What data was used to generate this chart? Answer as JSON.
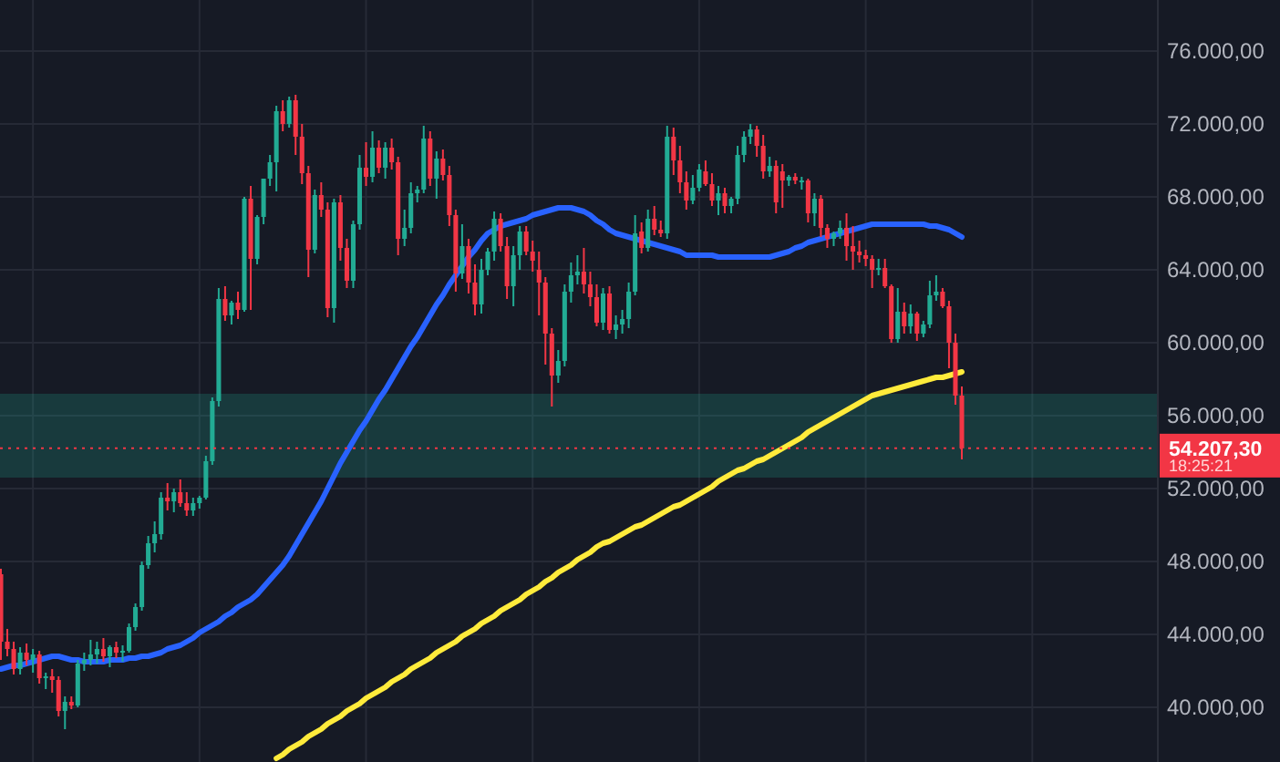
{
  "chart_data": {
    "type": "candlestick",
    "categories": [
      null,
      null,
      null,
      null,
      null,
      null,
      null,
      null,
      null,
      null,
      null,
      null,
      null,
      null,
      null,
      null,
      null,
      null,
      null,
      null,
      null,
      null,
      null,
      null,
      null,
      null,
      null,
      null,
      null,
      null,
      null,
      null,
      null,
      null,
      null,
      null,
      null,
      null,
      null,
      null,
      null,
      null,
      null,
      null,
      null,
      null,
      null,
      null,
      null,
      null,
      null,
      null,
      null,
      null,
      null,
      null,
      null,
      null,
      null,
      null,
      null,
      null,
      null,
      null,
      null,
      null,
      null,
      null,
      null,
      null,
      null,
      null,
      null,
      null,
      null,
      null,
      null,
      null,
      null,
      null,
      null,
      null,
      null,
      null,
      null,
      null,
      null,
      null,
      null,
      null,
      null,
      null,
      null,
      null,
      null,
      null,
      null,
      null,
      null,
      null,
      null,
      null,
      null,
      null,
      null,
      null,
      null,
      null,
      null,
      null,
      null,
      null,
      null,
      null,
      null,
      null,
      null,
      null,
      null,
      null,
      null,
      null,
      null,
      null,
      null,
      null,
      null,
      null,
      null,
      null,
      null,
      null,
      null,
      null,
      null,
      null,
      null,
      null,
      null,
      null,
      null,
      null,
      null,
      null,
      null,
      null,
      null,
      null,
      null,
      null,
      null
    ],
    "ohlc": [
      [
        47300,
        47600,
        42600,
        43600
      ],
      [
        43600,
        44300,
        42800,
        43200
      ],
      [
        43200,
        43600,
        41800,
        42100
      ],
      [
        42100,
        43300,
        41800,
        43000
      ],
      [
        43000,
        43500,
        42300,
        42600
      ],
      [
        42600,
        43200,
        41900,
        42900
      ],
      [
        42900,
        43100,
        41300,
        41600
      ],
      [
        41600,
        41900,
        41000,
        41700
      ],
      [
        41700,
        42100,
        40800,
        41500
      ],
      [
        41500,
        41700,
        39500,
        39800
      ],
      [
        39800,
        40600,
        38800,
        40300
      ],
      [
        40300,
        40600,
        39900,
        40100
      ],
      [
        40100,
        42600,
        40000,
        42400
      ],
      [
        42400,
        43000,
        42000,
        42600
      ],
      [
        42600,
        43700,
        42300,
        42900
      ],
      [
        42900,
        43600,
        42400,
        43200
      ],
      [
        43200,
        43800,
        42500,
        42800
      ],
      [
        42800,
        43400,
        42200,
        43300
      ],
      [
        43300,
        43600,
        42700,
        43000
      ],
      [
        43000,
        43400,
        42500,
        43100
      ],
      [
        43100,
        44600,
        43000,
        44400
      ],
      [
        44400,
        45700,
        44200,
        45500
      ],
      [
        45500,
        48000,
        45300,
        47800
      ],
      [
        47800,
        49400,
        47600,
        49000
      ],
      [
        49000,
        50200,
        48500,
        49500
      ],
      [
        49500,
        51800,
        49200,
        51500
      ],
      [
        51500,
        52300,
        50800,
        51300
      ],
      [
        51300,
        52000,
        50700,
        51800
      ],
      [
        51800,
        52500,
        51000,
        51200
      ],
      [
        51200,
        51800,
        50500,
        50800
      ],
      [
        50800,
        51500,
        50500,
        51200
      ],
      [
        51200,
        51600,
        50900,
        51500
      ],
      [
        51500,
        53800,
        51400,
        53500
      ],
      [
        53500,
        57000,
        53300,
        56800
      ],
      [
        56800,
        63000,
        56500,
        62400
      ],
      [
        62400,
        63100,
        61200,
        61500
      ],
      [
        61500,
        62300,
        61000,
        62200
      ],
      [
        62200,
        62800,
        61300,
        61800
      ],
      [
        61800,
        68000,
        61700,
        67900
      ],
      [
        67900,
        68600,
        61800,
        64600
      ],
      [
        64600,
        67000,
        64300,
        66900
      ],
      [
        66900,
        69000,
        66500,
        69000
      ],
      [
        69000,
        70300,
        68600,
        69900
      ],
      [
        69900,
        73000,
        68300,
        72700
      ],
      [
        72700,
        73300,
        71600,
        72000
      ],
      [
        72000,
        73500,
        71800,
        73300
      ],
      [
        73300,
        73600,
        70300,
        71300
      ],
      [
        71300,
        72000,
        68700,
        69300
      ],
      [
        69300,
        69700,
        63600,
        65100
      ],
      [
        65100,
        68400,
        64900,
        68100
      ],
      [
        68100,
        68800,
        66900,
        67300
      ],
      [
        67300,
        67700,
        61400,
        61900
      ],
      [
        61900,
        67900,
        61100,
        67700
      ],
      [
        67700,
        68100,
        64500,
        65200
      ],
      [
        65200,
        65700,
        63000,
        63400
      ],
      [
        63400,
        66700,
        63000,
        66500
      ],
      [
        66500,
        70300,
        66200,
        69600
      ],
      [
        69600,
        71000,
        68600,
        69100
      ],
      [
        69100,
        71600,
        68800,
        70700
      ],
      [
        70700,
        71100,
        69300,
        69600
      ],
      [
        69600,
        71000,
        69000,
        70700
      ],
      [
        70700,
        71200,
        69500,
        69900
      ],
      [
        69900,
        70200,
        64800,
        65700
      ],
      [
        65700,
        67300,
        65300,
        66300
      ],
      [
        66300,
        68800,
        66000,
        68200
      ],
      [
        68200,
        68600,
        67700,
        68400
      ],
      [
        68400,
        71900,
        68200,
        71200
      ],
      [
        71200,
        71600,
        68600,
        69000
      ],
      [
        69000,
        70500,
        67900,
        70100
      ],
      [
        70100,
        70600,
        68900,
        69200
      ],
      [
        69200,
        69700,
        66400,
        67000
      ],
      [
        67000,
        67300,
        62800,
        63800
      ],
      [
        63800,
        66500,
        63500,
        65300
      ],
      [
        65300,
        65700,
        62700,
        63300
      ],
      [
        63300,
        64300,
        61500,
        62100
      ],
      [
        62100,
        64600,
        61600,
        64000
      ],
      [
        64000,
        65200,
        63700,
        65000
      ],
      [
        65000,
        67200,
        64500,
        66800
      ],
      [
        66800,
        67100,
        65000,
        65300
      ],
      [
        65300,
        65800,
        62400,
        63100
      ],
      [
        63100,
        65300,
        62000,
        64800
      ],
      [
        64800,
        66400,
        64000,
        66100
      ],
      [
        66100,
        66400,
        64800,
        65000
      ],
      [
        65000,
        65600,
        63900,
        64500
      ],
      [
        64000,
        65000,
        61500,
        63300
      ],
      [
        63300,
        63600,
        58800,
        60500
      ],
      [
        60500,
        60800,
        56500,
        58200
      ],
      [
        58200,
        59600,
        57800,
        59000
      ],
      [
        59000,
        63200,
        58700,
        62800
      ],
      [
        62800,
        64400,
        62200,
        63700
      ],
      [
        63700,
        64800,
        63200,
        63900
      ],
      [
        63900,
        65200,
        62700,
        63200
      ],
      [
        63200,
        63900,
        62000,
        62500
      ],
      [
        62500,
        63200,
        60900,
        61100
      ],
      [
        61100,
        63000,
        60700,
        62700
      ],
      [
        62700,
        63100,
        60500,
        60700
      ],
      [
        60700,
        61500,
        60200,
        61000
      ],
      [
        61000,
        61800,
        60500,
        61300
      ],
      [
        61300,
        63300,
        60800,
        62800
      ],
      [
        62800,
        67000,
        62600,
        66000
      ],
      [
        66100,
        66600,
        64900,
        65200
      ],
      [
        65200,
        67300,
        65000,
        66800
      ],
      [
        66800,
        67500,
        65900,
        66200
      ],
      [
        66200,
        66700,
        65800,
        66000
      ],
      [
        66000,
        71900,
        65700,
        71300
      ],
      [
        71300,
        71800,
        69200,
        70000
      ],
      [
        70000,
        70800,
        68200,
        68800
      ],
      [
        68800,
        69400,
        67300,
        67800
      ],
      [
        67800,
        69200,
        67600,
        68500
      ],
      [
        68500,
        69800,
        68300,
        69500
      ],
      [
        69400,
        70000,
        68600,
        68700
      ],
      [
        68700,
        69300,
        67500,
        67800
      ],
      [
        67800,
        68600,
        67000,
        68200
      ],
      [
        68200,
        68500,
        67100,
        67500
      ],
      [
        67500,
        68000,
        67100,
        67900
      ],
      [
        67900,
        70800,
        67600,
        70300
      ],
      [
        70300,
        71600,
        69900,
        71300
      ],
      [
        71300,
        72000,
        70900,
        71700
      ],
      [
        71700,
        71900,
        70200,
        70800
      ],
      [
        70800,
        71400,
        69000,
        69400
      ],
      [
        69400,
        70200,
        69100,
        69700
      ],
      [
        69700,
        70000,
        67100,
        67700
      ],
      [
        69400,
        69800,
        67400,
        68900
      ],
      [
        68900,
        69200,
        68600,
        69100
      ],
      [
        69100,
        69300,
        68700,
        68900
      ],
      [
        68900,
        69100,
        68400,
        68900
      ],
      [
        68900,
        69000,
        66600,
        67100
      ],
      [
        67100,
        68200,
        66400,
        67900
      ],
      [
        67900,
        68100,
        65800,
        66300
      ],
      [
        66300,
        66500,
        65200,
        65700
      ],
      [
        65700,
        66100,
        65300,
        66000
      ],
      [
        66000,
        66700,
        65700,
        66300
      ],
      [
        66300,
        67100,
        64500,
        65300
      ],
      [
        65300,
        66400,
        64000,
        65000
      ],
      [
        65000,
        65600,
        64400,
        64800
      ],
      [
        64800,
        65100,
        64200,
        64600
      ],
      [
        64600,
        64800,
        63000,
        64000
      ],
      [
        64000,
        64600,
        63700,
        64100
      ],
      [
        64100,
        64600,
        63000,
        63100
      ],
      [
        63100,
        63200,
        60000,
        60200
      ],
      [
        60200,
        63000,
        60000,
        61700
      ],
      [
        61700,
        62200,
        60500,
        60900
      ],
      [
        60900,
        62100,
        60500,
        61600
      ],
      [
        61600,
        61700,
        60100,
        60500
      ],
      [
        60500,
        61200,
        60300,
        61000
      ],
      [
        61000,
        63400,
        60800,
        62600
      ],
      [
        62600,
        63700,
        62300,
        62800
      ],
      [
        62800,
        63000,
        61900,
        62000
      ],
      [
        62000,
        62300,
        58600,
        60000
      ],
      [
        60000,
        60500,
        56600,
        57100
      ],
      [
        57100,
        57600,
        53600,
        54207.3
      ]
    ],
    "series": [
      {
        "type": "line",
        "color": "#2962ff",
        "values": [
          42100,
          42200,
          42300,
          42300,
          42400,
          42500,
          42600,
          42700,
          42800,
          42800,
          42700,
          42600,
          42600,
          42500,
          42500,
          42500,
          42500,
          42600,
          42600,
          42600,
          42700,
          42700,
          42800,
          42800,
          42900,
          43000,
          43200,
          43300,
          43400,
          43600,
          43800,
          44100,
          44300,
          44500,
          44700,
          45000,
          45200,
          45500,
          45700,
          45900,
          46200,
          46600,
          47000,
          47400,
          47800,
          48300,
          48900,
          49500,
          50100,
          50700,
          51300,
          52000,
          52700,
          53400,
          54000,
          54600,
          55200,
          55700,
          56300,
          56900,
          57400,
          58000,
          58600,
          59200,
          59800,
          60300,
          60900,
          61500,
          62100,
          62600,
          63200,
          63700,
          64200,
          64700,
          65100,
          65600,
          66000,
          66200,
          66400,
          66500,
          66600,
          66700,
          66800,
          67000,
          67100,
          67200,
          67300,
          67400,
          67400,
          67400,
          67300,
          67200,
          67000,
          66700,
          66500,
          66200,
          66000,
          65900,
          65800,
          65700,
          65600,
          65500,
          65400,
          65300,
          65200,
          65100,
          65000,
          64800,
          64800,
          64800,
          64800,
          64800,
          64700,
          64700,
          64700,
          64700,
          64700,
          64700,
          64700,
          64700,
          64700,
          64800,
          64900,
          65000,
          65200,
          65300,
          65500,
          65600,
          65700,
          65800,
          65900,
          66000,
          66100,
          66200,
          66300,
          66400,
          66500,
          66500,
          66500,
          66500,
          66500,
          66500,
          66500,
          66500,
          66500,
          66400,
          66400,
          66300,
          66200,
          66000,
          65800
        ]
      },
      {
        "type": "line",
        "color": "#ffeb3b",
        "values": [
          null,
          null,
          null,
          null,
          null,
          null,
          null,
          null,
          null,
          null,
          null,
          null,
          null,
          null,
          null,
          null,
          null,
          null,
          null,
          null,
          null,
          null,
          null,
          null,
          null,
          null,
          null,
          null,
          null,
          null,
          null,
          null,
          null,
          null,
          null,
          null,
          null,
          null,
          null,
          null,
          null,
          null,
          null,
          37200,
          37400,
          37700,
          37900,
          38100,
          38400,
          38600,
          38800,
          39100,
          39300,
          39500,
          39800,
          40000,
          40200,
          40500,
          40700,
          40900,
          41100,
          41400,
          41600,
          41800,
          42100,
          42300,
          42500,
          42700,
          43000,
          43200,
          43400,
          43600,
          43900,
          44100,
          44300,
          44600,
          44800,
          45000,
          45300,
          45500,
          45700,
          45900,
          46200,
          46400,
          46600,
          46900,
          47100,
          47400,
          47600,
          47800,
          48100,
          48300,
          48500,
          48800,
          49000,
          49100,
          49300,
          49500,
          49700,
          49900,
          50000,
          50200,
          50400,
          50600,
          50800,
          51000,
          51100,
          51300,
          51500,
          51700,
          51900,
          52100,
          52400,
          52600,
          52800,
          53000,
          53100,
          53300,
          53500,
          53600,
          53800,
          54000,
          54200,
          54400,
          54600,
          54800,
          55100,
          55300,
          55500,
          55700,
          55900,
          56100,
          56300,
          56500,
          56700,
          56900,
          57100,
          57200,
          57300,
          57400,
          57500,
          57600,
          57700,
          57800,
          57900,
          58000,
          58100,
          58100,
          58200,
          58300,
          58400
        ]
      }
    ],
    "ylim": [
      37000,
      78800
    ],
    "yticks": [
      {
        "value": 40000,
        "label": "40.000,00"
      },
      {
        "value": 44000,
        "label": "44.000,00"
      },
      {
        "value": 48000,
        "label": "48.000,00"
      },
      {
        "value": 52000,
        "label": "52.000,00"
      },
      {
        "value": 56000,
        "label": "56.000,00"
      },
      {
        "value": 60000,
        "label": "60.000,00"
      },
      {
        "value": 64000,
        "label": "64.000,00"
      },
      {
        "value": 68000,
        "label": "68.000,00"
      },
      {
        "value": 72000,
        "label": "72.000,00"
      },
      {
        "value": 76000,
        "label": "76.000,00"
      }
    ],
    "tick_labels": "y",
    "grid": true,
    "bands": [
      {
        "axis": "y",
        "from": 52600,
        "to": 57200,
        "color": "#22ab94"
      }
    ],
    "ref_lines": [
      {
        "axis": "y",
        "value": 54207.3,
        "label": "54.207,30",
        "color": "#f23645",
        "line_style": "dotted"
      }
    ],
    "annotations": [
      "18:25:21"
    ]
  }
}
